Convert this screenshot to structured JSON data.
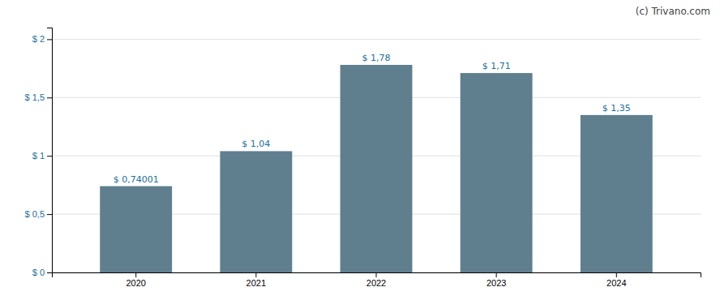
{
  "chart_data": {
    "type": "bar",
    "categories": [
      "2020",
      "2021",
      "2022",
      "2023",
      "2024"
    ],
    "values": [
      0.74001,
      1.04,
      1.78,
      1.71,
      1.35
    ],
    "value_labels": [
      "$ 0,74001",
      "$ 1,04",
      "$ 1,78",
      "$ 1,71",
      "$ 1,35"
    ],
    "data_labels": true,
    "color": "#5f7f8e",
    "ylim": [
      0,
      2.1
    ],
    "yticks": [
      {
        "value": 0,
        "label": "$ 0"
      },
      {
        "value": 0.5,
        "label": "$ 0,5"
      },
      {
        "value": 1.0,
        "label": "$ 1"
      },
      {
        "value": 1.5,
        "label": "$ 1,5"
      },
      {
        "value": 2.0,
        "label": "$ 2"
      }
    ],
    "grid": true,
    "annotations": [
      "(c) Trivano.com"
    ]
  }
}
